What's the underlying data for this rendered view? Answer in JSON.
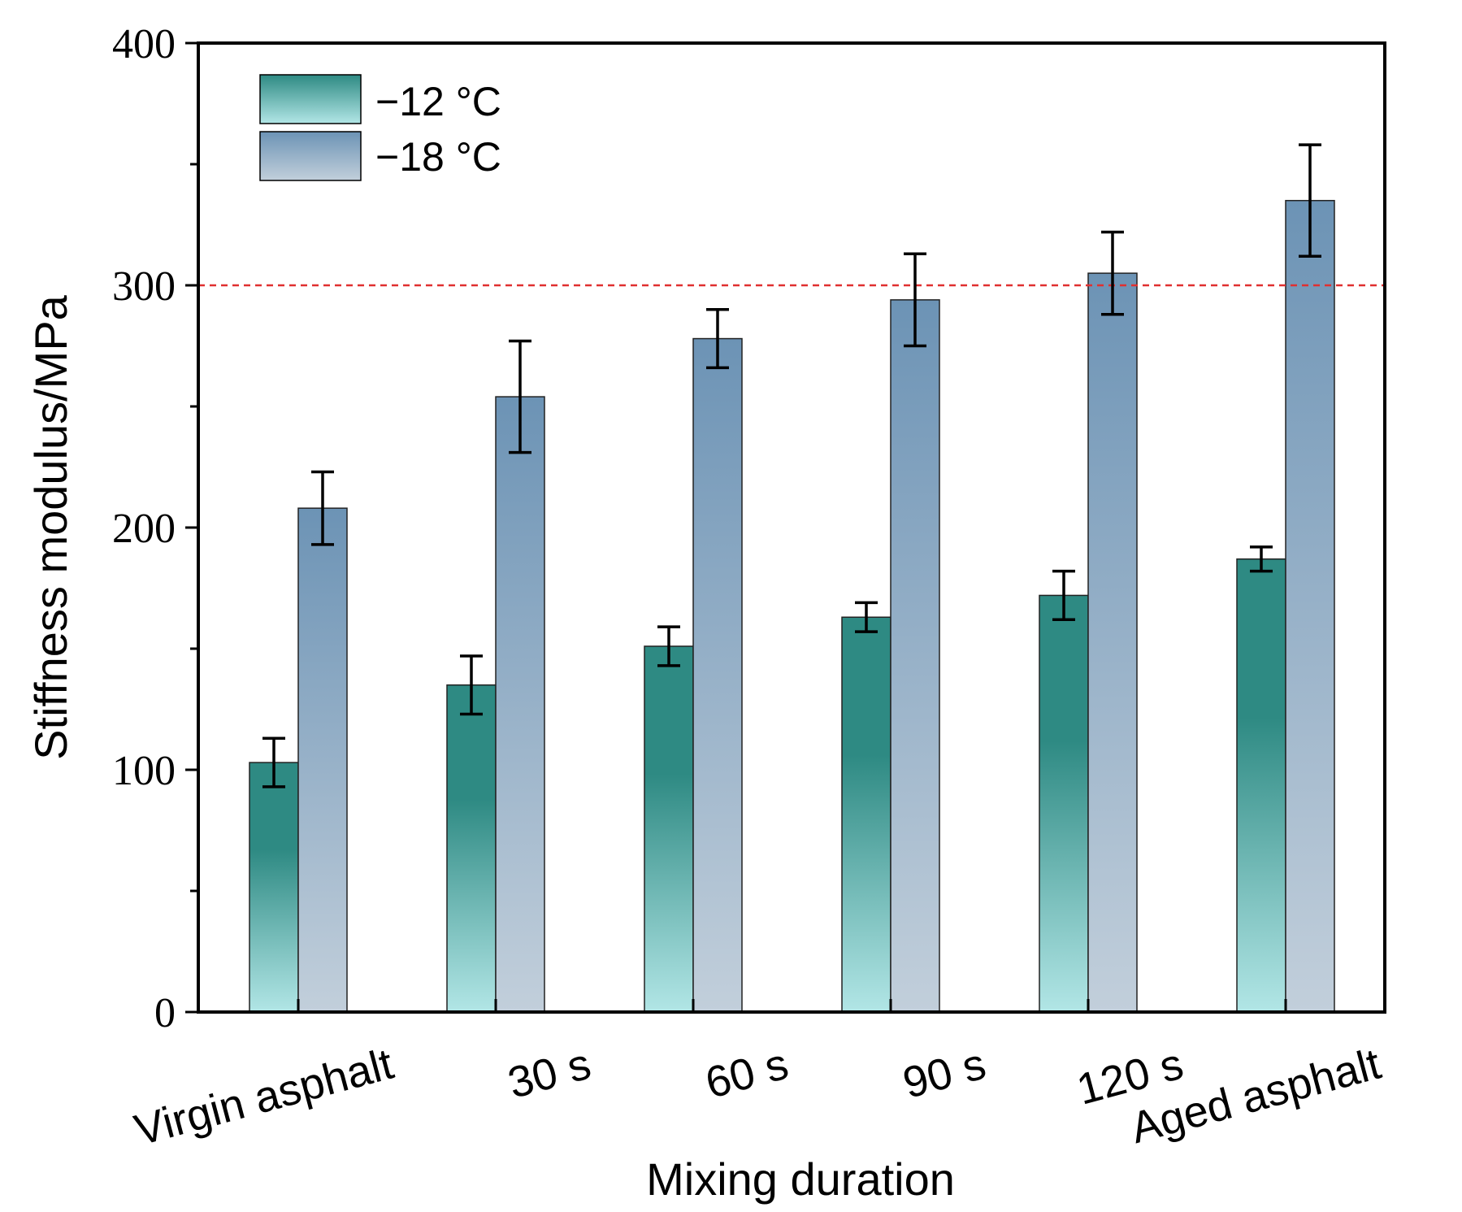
{
  "chart_data": {
    "type": "bar",
    "title": "",
    "xlabel": "Mixing duration",
    "ylabel": "Stiffness modulus/MPa",
    "ylim": [
      0,
      400
    ],
    "yticks": [
      0,
      100,
      200,
      300,
      400
    ],
    "categories": [
      "Virgin asphalt",
      "30 s",
      "60 s",
      "90 s",
      "120 s",
      "Aged asphalt"
    ],
    "series": [
      {
        "name": "−12 °C",
        "values": [
          103,
          135,
          151,
          163,
          172,
          187
        ],
        "errors": [
          10,
          12,
          8,
          6,
          10,
          5
        ],
        "color_top": "#2e8a83",
        "color_bottom": "#b2e6e6"
      },
      {
        "name": "−18 °C",
        "values": [
          208,
          254,
          278,
          294,
          305,
          335
        ],
        "errors": [
          15,
          23,
          12,
          19,
          17,
          23
        ],
        "color_top": "#6c93b5",
        "color_bottom": "#c2cfdb"
      }
    ],
    "reference_line": {
      "value": 300,
      "color": "#e03030",
      "style": "dashed"
    },
    "legend_position": "top-left",
    "grid": false
  }
}
